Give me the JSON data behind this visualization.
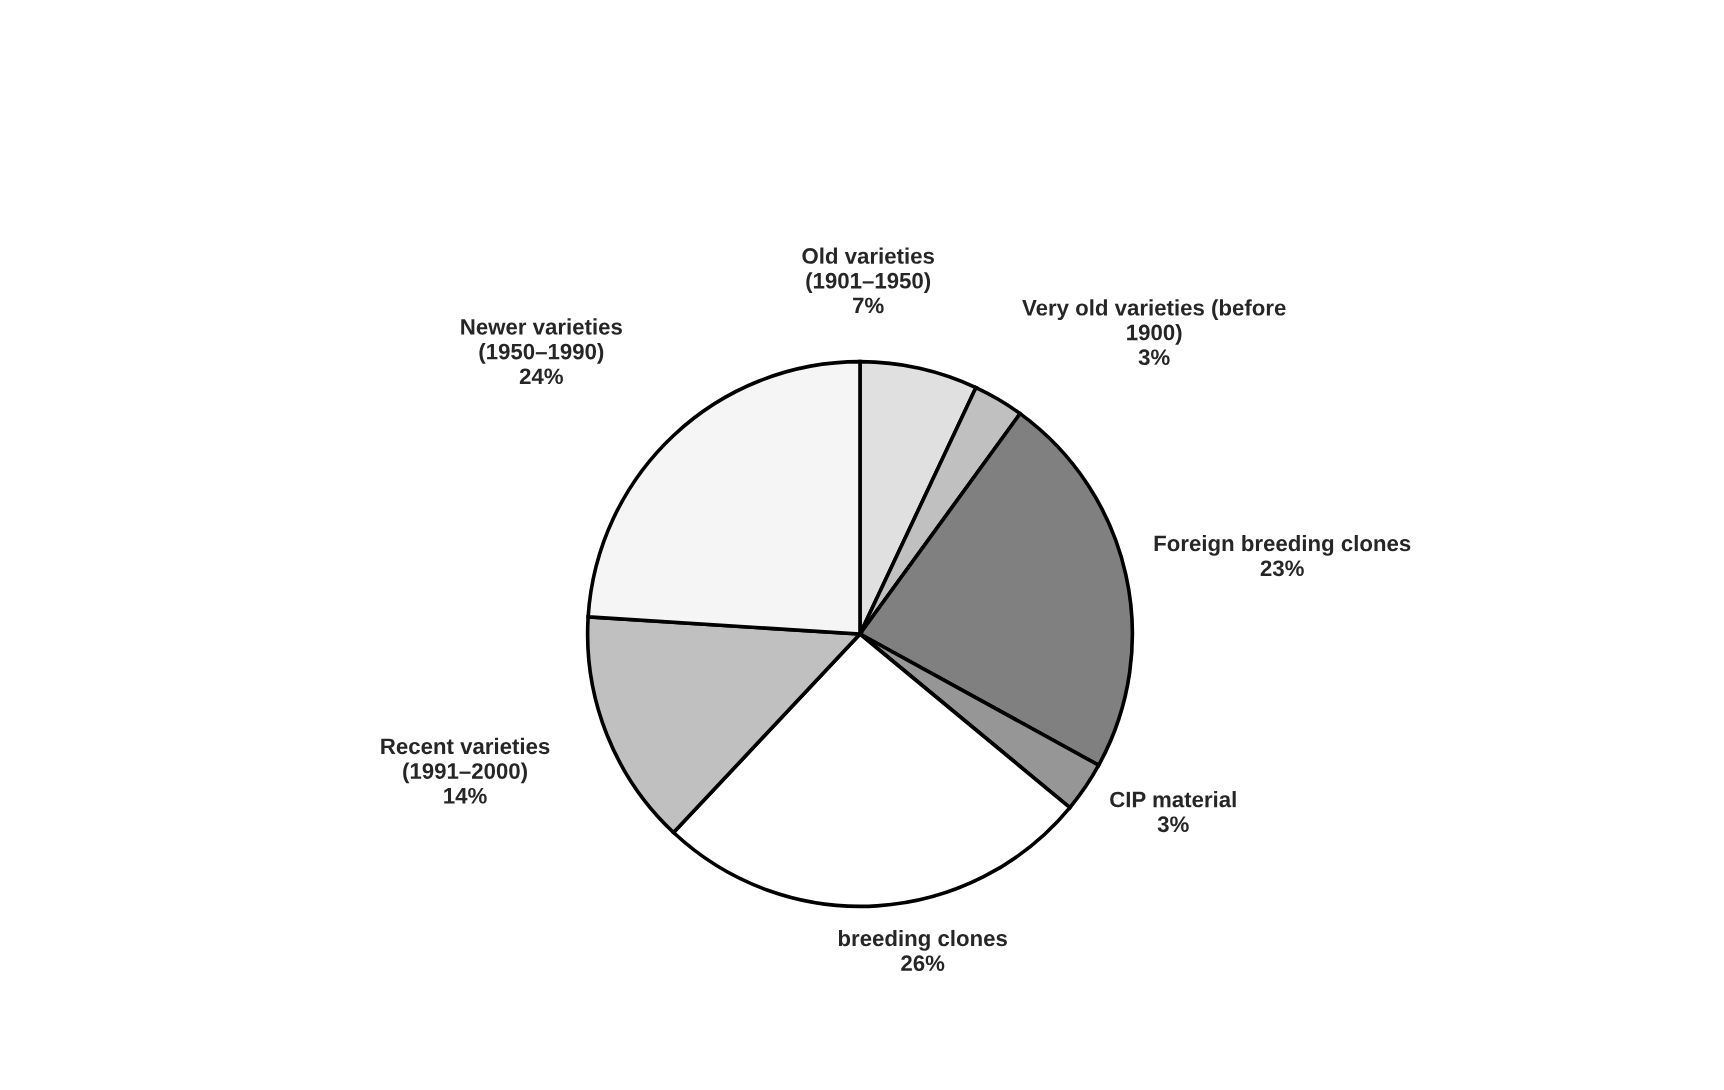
{
  "chart_data": {
    "type": "pie",
    "categories": [
      "Old varieties\n(1901–1950)",
      "Very old varieties (before\n1900)",
      "Foreign breeding clones",
      "CIP material",
      "breeding clones",
      "Recent varieties\n(1991–2000)",
      "Newer varieties\n(1950–1990)"
    ],
    "values": [
      7,
      3,
      23,
      3,
      26,
      14,
      24
    ],
    "value_labels": [
      "7%",
      "3%",
      "23%",
      "3%",
      "26%",
      "14%",
      "24%"
    ],
    "colors": [
      "#e0e0e0",
      "#c0c0c0",
      "#808080",
      "#969696",
      "#ffffff",
      "#c0c0c0",
      "#f5f5f5"
    ]
  }
}
